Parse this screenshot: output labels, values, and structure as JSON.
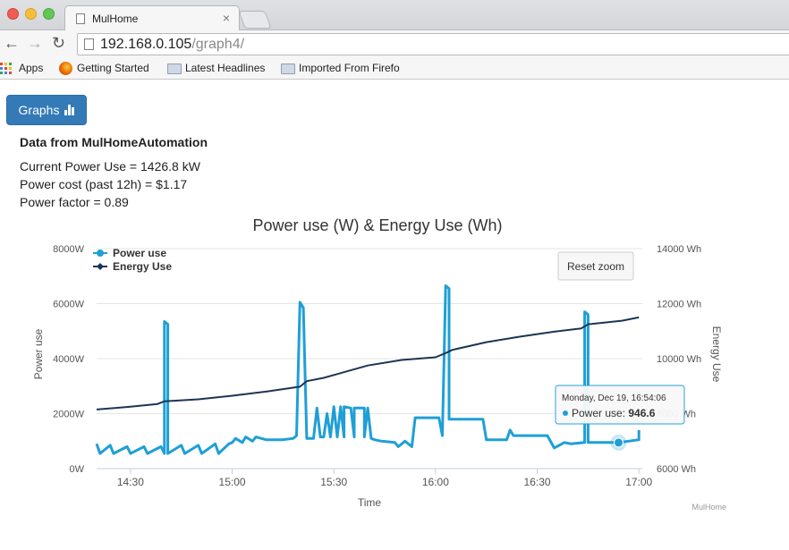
{
  "browser": {
    "tab_title": "MulHome",
    "tab_close": "×",
    "url_host": "192.168.0.105",
    "url_path": "/graph4/",
    "bookmarks": [
      "Apps",
      "Getting Started",
      "Latest Headlines",
      "Imported From Firefo"
    ]
  },
  "page": {
    "button_label": "Graphs",
    "heading": "Data from MulHomeAutomation",
    "lines": [
      "Current Power Use = 1426.8 kW",
      "Power cost (past 12h) = $1.17",
      "Power factor = 0.89"
    ]
  },
  "chart_data": {
    "type": "line",
    "title": "Power use (W) & Energy Use (Wh)",
    "xlabel": "Time",
    "ylabel": "Power use",
    "y2label": "Energy Use",
    "x_ticks": [
      "14:30",
      "15:00",
      "15:30",
      "16:00",
      "16:30",
      "17:00"
    ],
    "y_ticks": [
      "0W",
      "2000W",
      "4000W",
      "6000W",
      "8000W"
    ],
    "y2_ticks": [
      "6000 Wh",
      "8000 Wh",
      "10000 Wh",
      "12000 Wh",
      "14000 Wh"
    ],
    "ylim": [
      0,
      8000
    ],
    "y2lim": [
      6000,
      14000
    ],
    "legend_position": "top-left",
    "reset_zoom_label": "Reset zoom",
    "credits": "MulHome",
    "tooltip": {
      "date": "Monday, Dec 19, 16:54:06",
      "series": "Power use",
      "value": "946.6"
    },
    "series": [
      {
        "name": "Power use",
        "color": "#1f9fd6",
        "axis": "left",
        "points": [
          [
            "14:20",
            900
          ],
          [
            "14:21",
            550
          ],
          [
            "14:24",
            850
          ],
          [
            "14:25",
            550
          ],
          [
            "14:29",
            800
          ],
          [
            "14:30",
            550
          ],
          [
            "14:34",
            800
          ],
          [
            "14:35",
            550
          ],
          [
            "14:39",
            800
          ],
          [
            "14:40",
            550
          ],
          [
            "14:40",
            5350
          ],
          [
            "14:41",
            5250
          ],
          [
            "14:41",
            550
          ],
          [
            "14:45",
            850
          ],
          [
            "14:46",
            550
          ],
          [
            "14:50",
            850
          ],
          [
            "14:51",
            550
          ],
          [
            "14:55",
            900
          ],
          [
            "14:56",
            550
          ],
          [
            "14:59",
            900
          ],
          [
            "15:00",
            950
          ],
          [
            "15:01",
            1100
          ],
          [
            "15:03",
            950
          ],
          [
            "15:04",
            1150
          ],
          [
            "15:06",
            1000
          ],
          [
            "15:07",
            1150
          ],
          [
            "15:10",
            1050
          ],
          [
            "15:15",
            1050
          ],
          [
            "15:18",
            1100
          ],
          [
            "15:19",
            1200
          ],
          [
            "15:20",
            6050
          ],
          [
            "15:21",
            5850
          ],
          [
            "15:22",
            1100
          ],
          [
            "15:24",
            1100
          ],
          [
            "15:25",
            2200
          ],
          [
            "15:26",
            1150
          ],
          [
            "15:27",
            1150
          ],
          [
            "15:28",
            2000
          ],
          [
            "15:29",
            1150
          ],
          [
            "15:30",
            2250
          ],
          [
            "15:31",
            1150
          ],
          [
            "15:32",
            2250
          ],
          [
            "15:33",
            1150
          ],
          [
            "15:33",
            2250
          ],
          [
            "15:35",
            2200
          ],
          [
            "15:36",
            1150
          ],
          [
            "15:36",
            2200
          ],
          [
            "15:39",
            2200
          ],
          [
            "15:39",
            1150
          ],
          [
            "15:40",
            2200
          ],
          [
            "15:41",
            1100
          ],
          [
            "15:42",
            1050
          ],
          [
            "15:44",
            1000
          ],
          [
            "15:48",
            950
          ],
          [
            "15:49",
            800
          ],
          [
            "15:51",
            1000
          ],
          [
            "15:53",
            800
          ],
          [
            "15:54",
            1850
          ],
          [
            "16:01",
            1850
          ],
          [
            "16:02",
            1200
          ],
          [
            "16:03",
            6650
          ],
          [
            "16:04",
            6550
          ],
          [
            "16:04",
            1800
          ],
          [
            "16:14",
            1800
          ],
          [
            "16:15",
            1050
          ],
          [
            "16:21",
            1050
          ],
          [
            "16:22",
            1400
          ],
          [
            "16:23",
            1200
          ],
          [
            "16:33",
            1200
          ],
          [
            "16:35",
            750
          ],
          [
            "16:38",
            950
          ],
          [
            "16:40",
            900
          ],
          [
            "16:44",
            950
          ],
          [
            "16:44",
            5700
          ],
          [
            "16:45",
            5600
          ],
          [
            "16:45",
            950
          ],
          [
            "16:51",
            950
          ],
          [
            "16:54",
            946.6
          ],
          [
            "16:57",
            1000
          ],
          [
            "17:00",
            1050
          ],
          [
            "17:00",
            1400
          ]
        ]
      },
      {
        "name": "Energy Use",
        "color": "#1c3556",
        "axis": "right",
        "points": [
          [
            "14:20",
            8150
          ],
          [
            "14:30",
            8250
          ],
          [
            "14:38",
            8350
          ],
          [
            "14:40",
            8450
          ],
          [
            "14:50",
            8520
          ],
          [
            "15:00",
            8650
          ],
          [
            "15:10",
            8800
          ],
          [
            "15:20",
            8980
          ],
          [
            "15:22",
            9180
          ],
          [
            "15:27",
            9300
          ],
          [
            "15:40",
            9750
          ],
          [
            "15:50",
            9950
          ],
          [
            "16:00",
            10050
          ],
          [
            "16:03",
            10200
          ],
          [
            "16:05",
            10320
          ],
          [
            "16:15",
            10600
          ],
          [
            "16:25",
            10800
          ],
          [
            "16:35",
            10980
          ],
          [
            "16:43",
            11100
          ],
          [
            "16:45",
            11250
          ],
          [
            "16:55",
            11380
          ],
          [
            "17:00",
            11500
          ]
        ]
      }
    ]
  }
}
